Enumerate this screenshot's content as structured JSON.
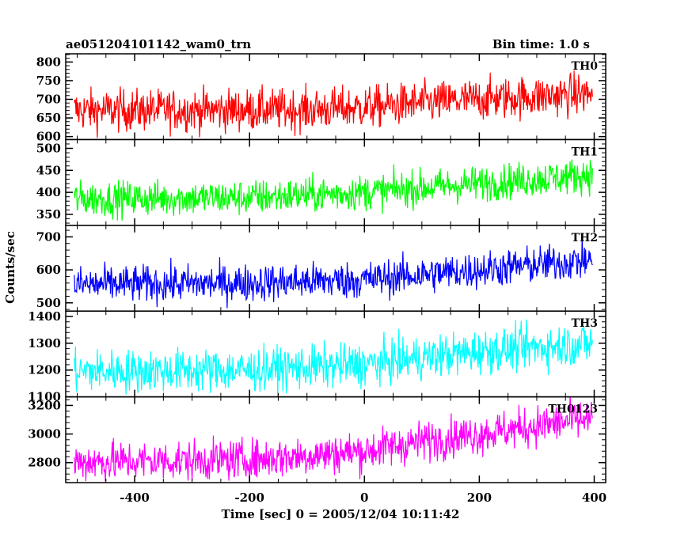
{
  "header": {
    "title": "ae051204101142_wam0_trn",
    "bin_time": "Bin time: 1.0 s"
  },
  "chart_data": {
    "type": "line",
    "title": "ae051204101142_wam0_trn",
    "subtitle": "Bin time: 1.0 s",
    "xlabel": "Time [sec] 0 = 2005/12/04 10:11:42",
    "ylabel": "Counts/sec",
    "xlim": [
      -520,
      420
    ],
    "x_ticks": [
      -400,
      -200,
      0,
      200,
      400
    ],
    "x_range_data": [
      -505,
      397
    ],
    "grid": false,
    "panels": [
      {
        "name": "TH0",
        "color": "#ff0000",
        "ylim": [
          592,
          822
        ],
        "y_ticks": [
          600,
          650,
          700,
          750,
          800
        ],
        "trend": [
          [
            -505,
            670
          ],
          [
            -100,
            672
          ],
          [
            0,
            678
          ],
          [
            100,
            690
          ],
          [
            200,
            700
          ],
          [
            397,
            715
          ]
        ],
        "noise_amplitude": 28
      },
      {
        "name": "TH1",
        "color": "#00ff00",
        "ylim": [
          325,
          520
        ],
        "y_ticks": [
          350,
          400,
          450,
          500
        ],
        "trend": [
          [
            -505,
            385
          ],
          [
            -200,
            388
          ],
          [
            0,
            400
          ],
          [
            200,
            420
          ],
          [
            397,
            440
          ]
        ],
        "noise_amplitude": 20
      },
      {
        "name": "TH2",
        "color": "#0000ff",
        "ylim": [
          475,
          735
        ],
        "y_ticks": [
          500,
          600,
          700
        ],
        "trend": [
          [
            -505,
            555
          ],
          [
            -200,
            560
          ],
          [
            0,
            570
          ],
          [
            200,
            600
          ],
          [
            397,
            630
          ]
        ],
        "noise_amplitude": 28
      },
      {
        "name": "TH3",
        "color": "#00ffff",
        "ylim": [
          1100,
          1420
        ],
        "y_ticks": [
          1100,
          1200,
          1300,
          1400
        ],
        "trend": [
          [
            -505,
            1195
          ],
          [
            -200,
            1200
          ],
          [
            0,
            1220
          ],
          [
            100,
            1245
          ],
          [
            200,
            1270
          ],
          [
            397,
            1300
          ]
        ],
        "noise_amplitude": 40
      },
      {
        "name": "TH0123",
        "color": "#ff00ff",
        "ylim": [
          2660,
          3260
        ],
        "y_ticks": [
          2800,
          3000,
          3200
        ],
        "trend": [
          [
            -505,
            2805
          ],
          [
            -200,
            2820
          ],
          [
            0,
            2880
          ],
          [
            100,
            2950
          ],
          [
            200,
            3000
          ],
          [
            397,
            3110
          ]
        ],
        "noise_amplitude": 70
      }
    ]
  }
}
